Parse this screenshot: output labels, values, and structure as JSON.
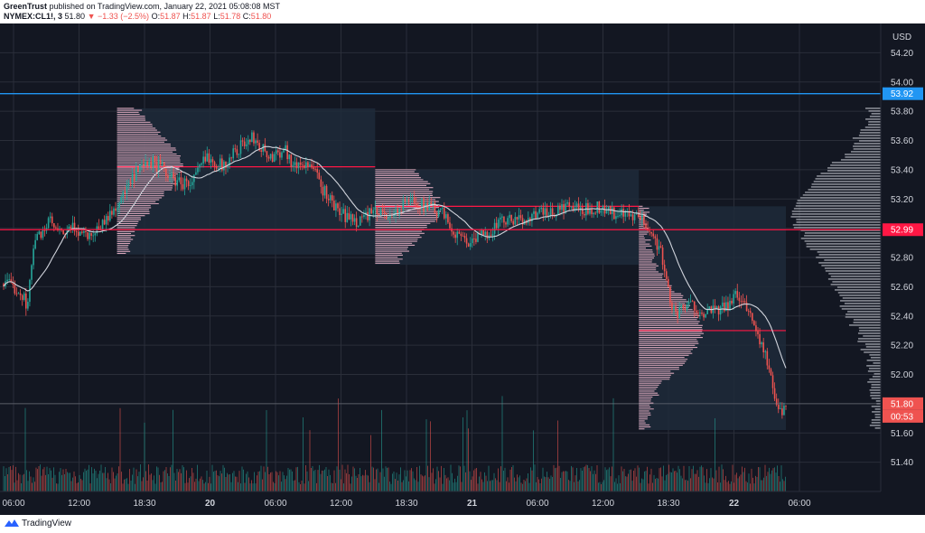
{
  "header": {
    "publisher": "GreenTrust",
    "published_text": "published on TradingView.com, January 22, 2021 05:08:08 MST",
    "symbol": "NYMEX:CL1!, 3",
    "last": "51.80",
    "change_arrow": "▼",
    "change": "−1.33 (−2.5%)",
    "o_label": "O:",
    "o_value": "51.87",
    "h_label": "H:",
    "h_value": "51.87",
    "l_label": "L:",
    "l_value": "51.78",
    "c_label": "C:",
    "c_value": "51.80"
  },
  "footer": {
    "brand": "TradingView"
  },
  "chart_data": {
    "type": "candlestick",
    "currency_label": "USD",
    "y_ticks": [
      "54.20",
      "54.00",
      "53.80",
      "53.60",
      "53.40",
      "53.20",
      "53.00",
      "52.80",
      "52.60",
      "52.40",
      "52.20",
      "52.00",
      "51.80",
      "51.60",
      "51.40"
    ],
    "y_range": [
      51.2,
      54.4
    ],
    "x_ticks": [
      {
        "label": "06:00",
        "bold": false
      },
      {
        "label": "12:00",
        "bold": false
      },
      {
        "label": "18:30",
        "bold": false
      },
      {
        "label": "20",
        "bold": true
      },
      {
        "label": "06:00",
        "bold": false
      },
      {
        "label": "12:00",
        "bold": false
      },
      {
        "label": "18:30",
        "bold": false
      },
      {
        "label": "21",
        "bold": true
      },
      {
        "label": "06:00",
        "bold": false
      },
      {
        "label": "12:00",
        "bold": false
      },
      {
        "label": "18:30",
        "bold": false
      },
      {
        "label": "22",
        "bold": true
      },
      {
        "label": "06:00",
        "bold": false
      }
    ],
    "price_path": [
      [
        0,
        52.62
      ],
      [
        0.02,
        52.58
      ],
      [
        0.03,
        52.48
      ],
      [
        0.04,
        52.92
      ],
      [
        0.06,
        53.05
      ],
      [
        0.07,
        52.95
      ],
      [
        0.09,
        53.0
      ],
      [
        0.11,
        52.95
      ],
      [
        0.13,
        53.05
      ],
      [
        0.15,
        53.2
      ],
      [
        0.17,
        53.38
      ],
      [
        0.19,
        53.45
      ],
      [
        0.2,
        53.42
      ],
      [
        0.22,
        53.32
      ],
      [
        0.24,
        53.3
      ],
      [
        0.26,
        53.5
      ],
      [
        0.28,
        53.42
      ],
      [
        0.3,
        53.55
      ],
      [
        0.32,
        53.62
      ],
      [
        0.34,
        53.48
      ],
      [
        0.36,
        53.55
      ],
      [
        0.37,
        53.42
      ],
      [
        0.39,
        53.45
      ],
      [
        0.41,
        53.25
      ],
      [
        0.43,
        53.1
      ],
      [
        0.45,
        53.05
      ],
      [
        0.47,
        53.1
      ],
      [
        0.5,
        53.1
      ],
      [
        0.52,
        53.2
      ],
      [
        0.54,
        53.15
      ],
      [
        0.56,
        53.1
      ],
      [
        0.58,
        52.95
      ],
      [
        0.6,
        52.9
      ],
      [
        0.62,
        52.98
      ],
      [
        0.64,
        53.05
      ],
      [
        0.66,
        53.05
      ],
      [
        0.68,
        53.1
      ],
      [
        0.7,
        53.1
      ],
      [
        0.72,
        53.15
      ],
      [
        0.74,
        53.12
      ],
      [
        0.76,
        53.15
      ],
      [
        0.78,
        53.1
      ],
      [
        0.8,
        53.08
      ],
      [
        0.82,
        53.05
      ],
      [
        0.83,
        52.95
      ],
      [
        0.84,
        52.85
      ],
      [
        0.85,
        52.55
      ],
      [
        0.86,
        52.4
      ],
      [
        0.87,
        52.45
      ],
      [
        0.88,
        52.48
      ],
      [
        0.9,
        52.42
      ],
      [
        0.92,
        52.45
      ],
      [
        0.94,
        52.55
      ],
      [
        0.95,
        52.45
      ],
      [
        0.96,
        52.35
      ],
      [
        0.97,
        52.2
      ],
      [
        0.98,
        52.0
      ],
      [
        0.99,
        51.72
      ],
      [
        1.0,
        51.8
      ]
    ],
    "sessions": [
      {
        "start_price": 53.82,
        "end_price": 52.82,
        "poc": 53.42
      },
      {
        "start_price": 53.4,
        "end_price": 52.75,
        "poc": 53.15
      },
      {
        "start_price": 53.15,
        "end_price": 51.62,
        "poc": 52.3
      }
    ],
    "horizontal_lines": [
      {
        "price": 53.92,
        "color": "#2196f3"
      },
      {
        "price": 52.99,
        "color": "#ff1744"
      }
    ],
    "price_labels": [
      {
        "price": 53.92,
        "text": "53.92",
        "bg": "#2196f3"
      },
      {
        "price": 52.99,
        "text": "52.99",
        "bg": "#ff1744"
      },
      {
        "price": 51.8,
        "text": "51.80",
        "bg": "#ef5350"
      }
    ],
    "countdown": "00:53",
    "colors": {
      "up": "#26a69a",
      "down": "#ef5350",
      "ma": "#d1d4dc",
      "background": "#131722",
      "grid": "#2a2e39",
      "profile": "#f8bbd0",
      "session_box": "#1e2a3a"
    }
  }
}
